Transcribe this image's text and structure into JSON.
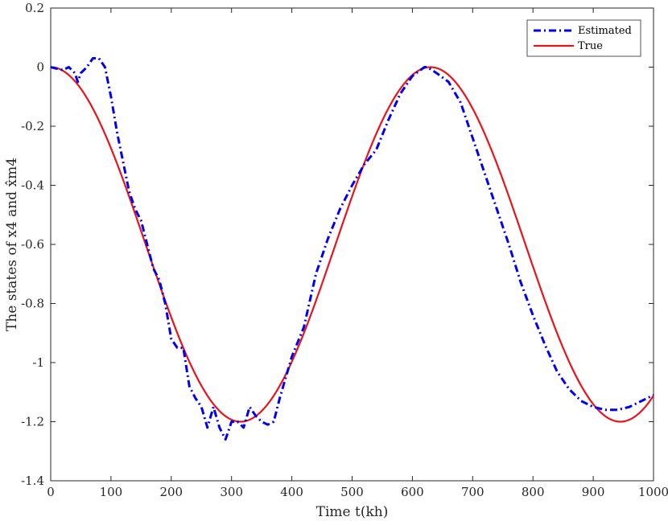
{
  "chart_data": {
    "type": "line",
    "xlabel": "Time t(kh)",
    "ylabel": "The states of x4 and x̂m4",
    "xlim": [
      0,
      1000
    ],
    "ylim": [
      -1.4,
      0.2
    ],
    "x_ticks": [
      "0",
      "100",
      "200",
      "300",
      "400",
      "500",
      "600",
      "700",
      "800",
      "900",
      "1000"
    ],
    "y_ticks": [
      "0.2",
      "0",
      "-0.2",
      "-0.4",
      "-0.6",
      "-0.8",
      "-1",
      "-1.2",
      "-1.4"
    ],
    "grid": false,
    "legend_position": "top-right",
    "series": [
      {
        "name": "Estimated",
        "color": "#0000ee",
        "style": "dash-dot",
        "x": [
          0,
          20,
          30,
          40,
          45,
          50,
          60,
          70,
          80,
          90,
          100,
          110,
          120,
          130,
          140,
          150,
          160,
          170,
          180,
          190,
          200,
          210,
          220,
          230,
          240,
          250,
          260,
          270,
          280,
          290,
          300,
          310,
          320,
          330,
          340,
          350,
          360,
          370,
          380,
          390,
          400,
          420,
          440,
          460,
          480,
          500,
          520,
          540,
          560,
          580,
          600,
          620,
          625,
          640,
          660,
          680,
          700,
          720,
          740,
          760,
          780,
          800,
          820,
          840,
          860,
          880,
          900,
          920,
          940,
          960,
          980,
          1000
        ],
        "y": [
          0,
          -0.01,
          0.0,
          -0.02,
          -0.05,
          -0.02,
          0.0,
          0.03,
          0.03,
          0.0,
          -0.1,
          -0.22,
          -0.32,
          -0.42,
          -0.48,
          -0.52,
          -0.6,
          -0.68,
          -0.72,
          -0.8,
          -0.92,
          -0.95,
          -0.95,
          -1.08,
          -1.12,
          -1.15,
          -1.22,
          -1.15,
          -1.22,
          -1.26,
          -1.2,
          -1.2,
          -1.22,
          -1.15,
          -1.18,
          -1.2,
          -1.21,
          -1.2,
          -1.12,
          -1.05,
          -0.98,
          -0.88,
          -0.7,
          -0.58,
          -0.48,
          -0.4,
          -0.33,
          -0.28,
          -0.18,
          -0.09,
          -0.03,
          0.0,
          0.0,
          -0.02,
          -0.05,
          -0.12,
          -0.24,
          -0.36,
          -0.48,
          -0.6,
          -0.73,
          -0.84,
          -0.94,
          -1.03,
          -1.09,
          -1.13,
          -1.15,
          -1.16,
          -1.16,
          -1.15,
          -1.13,
          -1.11
        ]
      },
      {
        "name": "True",
        "color": "#e8141c",
        "style": "solid",
        "function": "-0.6 + 0.6*cos(2*pi*x/630)"
      }
    ]
  }
}
